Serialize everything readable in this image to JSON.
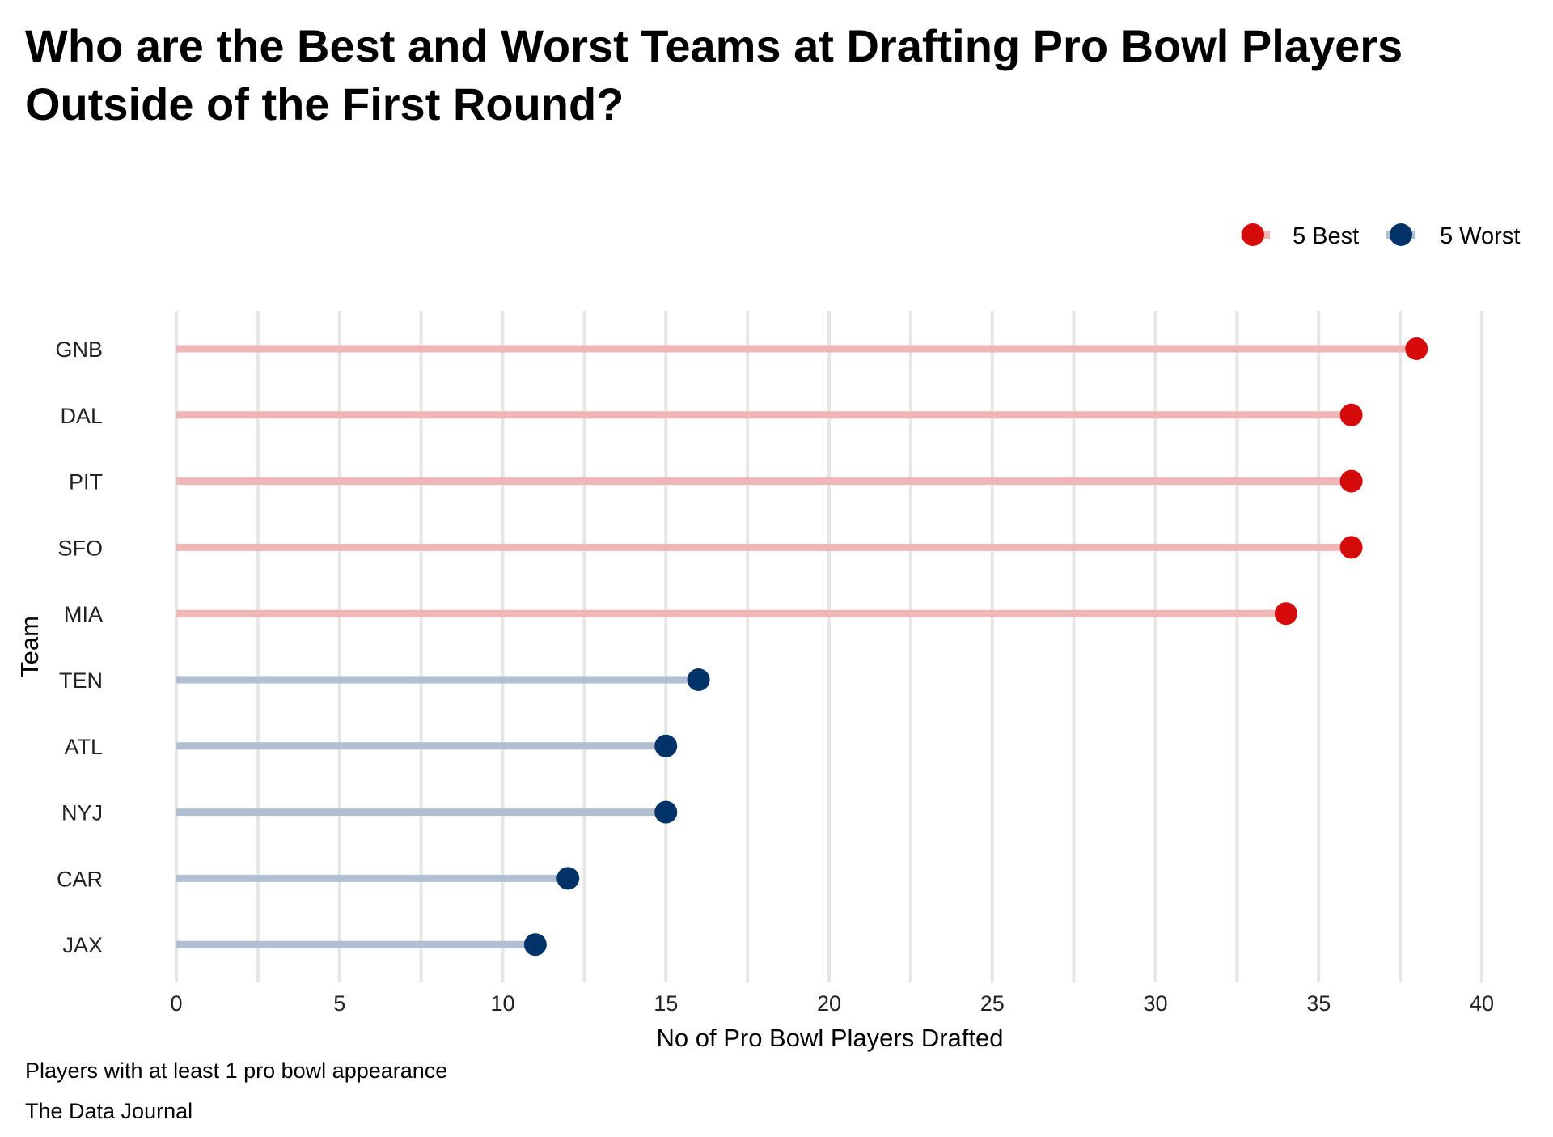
{
  "chart_data": {
    "type": "lollipop",
    "title_lines": [
      "Who are the Best and Worst Teams at Drafting Pro Bowl Players",
      "Outside of the First Round?"
    ],
    "xlabel": "No of Pro Bowl Players Drafted",
    "ylabel": "Team",
    "xlim": [
      0,
      40
    ],
    "xticks": [
      0,
      5,
      10,
      15,
      20,
      25,
      30,
      35,
      40
    ],
    "grid": "vertical",
    "legend_position": "top-right",
    "legend": [
      {
        "label": "5 Best",
        "point_color": "#d50a0a",
        "line_color": "#f0b6b6"
      },
      {
        "label": "5 Worst",
        "point_color": "#013369",
        "line_color": "#b0bfd1"
      }
    ],
    "categories": [
      "GNB",
      "DAL",
      "PIT",
      "SFO",
      "MIA",
      "TEN",
      "ATL",
      "NYJ",
      "CAR",
      "JAX"
    ],
    "values": [
      38,
      36,
      36,
      36,
      34,
      16,
      15,
      15,
      12,
      11
    ],
    "groups": [
      "5 Best",
      "5 Best",
      "5 Best",
      "5 Best",
      "5 Best",
      "5 Worst",
      "5 Worst",
      "5 Worst",
      "5 Worst",
      "5 Worst"
    ]
  },
  "captions": [
    "Players with at least 1 pro bowl appearance",
    "The Data Journal"
  ]
}
